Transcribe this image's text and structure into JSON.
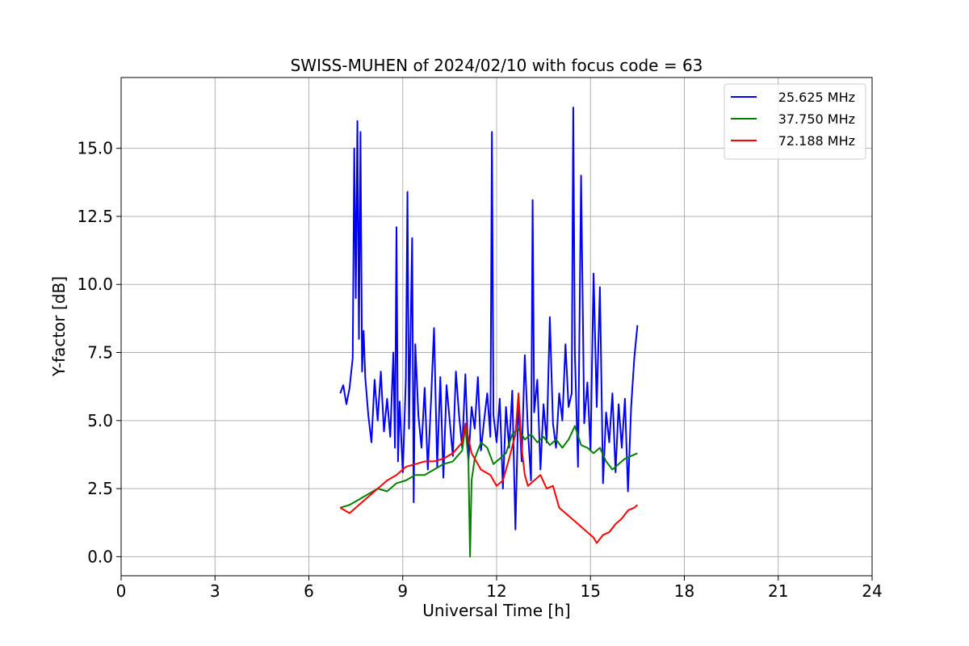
{
  "chart_data": {
    "type": "line",
    "title": "SWISS-MUHEN of 2024/02/10 with focus code = 63",
    "xlabel": "Universal Time [h]",
    "ylabel": "Y-factor [dB]",
    "xlim": [
      0,
      24
    ],
    "ylim": [
      -0.7,
      17.6
    ],
    "x_ticks": [
      0,
      3,
      6,
      9,
      12,
      15,
      18,
      21,
      24
    ],
    "x_tick_labels": [
      "0",
      "3",
      "6",
      "9",
      "12",
      "15",
      "18",
      "21",
      "24"
    ],
    "y_ticks": [
      0,
      2.5,
      5,
      7.5,
      10,
      12.5,
      15
    ],
    "y_tick_labels": [
      "0.0",
      "2.5",
      "5.0",
      "7.5",
      "10.0",
      "12.5",
      "15.0"
    ],
    "grid": true,
    "legend_position": "top-right",
    "series": [
      {
        "name": "25.625 MHz",
        "color": "#0000ff",
        "x": [
          7.0,
          7.1,
          7.2,
          7.3,
          7.4,
          7.45,
          7.5,
          7.55,
          7.6,
          7.65,
          7.7,
          7.75,
          7.8,
          7.9,
          8.0,
          8.1,
          8.2,
          8.3,
          8.4,
          8.5,
          8.6,
          8.7,
          8.75,
          8.8,
          8.85,
          8.9,
          9.0,
          9.1,
          9.15,
          9.2,
          9.3,
          9.35,
          9.4,
          9.5,
          9.6,
          9.7,
          9.8,
          9.9,
          10.0,
          10.1,
          10.2,
          10.3,
          10.4,
          10.5,
          10.6,
          10.7,
          10.8,
          10.9,
          11.0,
          11.1,
          11.2,
          11.3,
          11.4,
          11.5,
          11.6,
          11.7,
          11.8,
          11.85,
          11.9,
          12.0,
          12.1,
          12.2,
          12.3,
          12.4,
          12.5,
          12.6,
          12.7,
          12.8,
          12.9,
          13.0,
          13.1,
          13.15,
          13.2,
          13.3,
          13.4,
          13.5,
          13.6,
          13.7,
          13.8,
          13.9,
          14.0,
          14.1,
          14.2,
          14.3,
          14.4,
          14.45,
          14.5,
          14.6,
          14.7,
          14.8,
          14.9,
          15.0,
          15.1,
          15.2,
          15.3,
          15.4,
          15.5,
          15.6,
          15.7,
          15.8,
          15.9,
          16.0,
          16.1,
          16.2,
          16.3,
          16.4,
          16.5
        ],
        "y": [
          6.0,
          6.3,
          5.6,
          6.2,
          7.3,
          15.0,
          9.5,
          16.0,
          8.0,
          15.6,
          6.8,
          8.3,
          6.6,
          5.2,
          4.2,
          6.5,
          5.0,
          6.8,
          4.6,
          5.8,
          4.4,
          7.5,
          4.0,
          12.1,
          3.5,
          5.7,
          3.1,
          6.5,
          13.4,
          4.7,
          11.7,
          2.0,
          7.8,
          5.2,
          4.0,
          6.2,
          3.2,
          5.6,
          8.4,
          3.3,
          6.6,
          2.9,
          6.3,
          5.0,
          3.7,
          6.8,
          5.2,
          4.0,
          6.7,
          3.5,
          5.5,
          4.7,
          6.6,
          3.9,
          5.0,
          6.0,
          4.4,
          15.6,
          5.2,
          4.2,
          5.8,
          2.5,
          5.5,
          4.0,
          6.1,
          1.0,
          5.8,
          3.5,
          7.4,
          4.6,
          2.8,
          13.1,
          5.3,
          6.5,
          3.2,
          5.6,
          4.2,
          8.8,
          4.9,
          4.0,
          6.0,
          5.0,
          7.8,
          5.5,
          6.0,
          16.5,
          7.5,
          3.3,
          14.0,
          4.9,
          6.4,
          3.9,
          10.4,
          5.5,
          9.9,
          2.7,
          5.3,
          4.2,
          6.0,
          3.1,
          5.6,
          4.0,
          5.8,
          2.4,
          5.5,
          7.3,
          8.5
        ]
      },
      {
        "name": "37.750 MHz",
        "color": "#008000",
        "x": [
          7.0,
          7.3,
          7.6,
          7.9,
          8.2,
          8.5,
          8.8,
          9.1,
          9.4,
          9.7,
          10.0,
          10.3,
          10.6,
          10.9,
          11.0,
          11.1,
          11.15,
          11.2,
          11.3,
          11.5,
          11.7,
          11.9,
          12.1,
          12.3,
          12.5,
          12.7,
          12.9,
          13.1,
          13.3,
          13.5,
          13.7,
          13.9,
          14.1,
          14.3,
          14.5,
          14.7,
          14.9,
          15.1,
          15.3,
          15.5,
          15.7,
          15.9,
          16.1,
          16.3,
          16.5
        ],
        "y": [
          1.8,
          1.9,
          2.1,
          2.3,
          2.5,
          2.4,
          2.7,
          2.8,
          3.0,
          3.0,
          3.2,
          3.4,
          3.5,
          3.9,
          4.8,
          3.5,
          0.0,
          2.8,
          3.6,
          4.2,
          4.0,
          3.4,
          3.6,
          3.8,
          4.5,
          4.7,
          4.3,
          4.5,
          4.2,
          4.4,
          4.1,
          4.3,
          4.0,
          4.3,
          4.8,
          4.1,
          4.0,
          3.8,
          4.0,
          3.5,
          3.2,
          3.4,
          3.6,
          3.7,
          3.8
        ]
      },
      {
        "name": "72.188 MHz",
        "color": "#ff0000",
        "x": [
          7.0,
          7.3,
          7.6,
          7.9,
          8.2,
          8.5,
          8.8,
          9.1,
          9.4,
          9.7,
          10.0,
          10.3,
          10.6,
          10.9,
          11.0,
          11.2,
          11.5,
          11.8,
          12.0,
          12.2,
          12.4,
          12.6,
          12.7,
          12.8,
          12.9,
          13.0,
          13.2,
          13.4,
          13.6,
          13.8,
          14.0,
          14.3,
          14.6,
          14.9,
          15.1,
          15.2,
          15.4,
          15.6,
          15.8,
          16.0,
          16.2,
          16.4,
          16.5
        ],
        "y": [
          1.8,
          1.6,
          1.9,
          2.2,
          2.5,
          2.8,
          3.0,
          3.3,
          3.4,
          3.5,
          3.5,
          3.6,
          3.8,
          4.2,
          4.9,
          3.8,
          3.2,
          3.0,
          2.6,
          2.8,
          3.6,
          4.5,
          6.0,
          4.0,
          3.0,
          2.6,
          2.8,
          3.0,
          2.5,
          2.6,
          1.8,
          1.5,
          1.2,
          0.9,
          0.7,
          0.5,
          0.8,
          0.9,
          1.2,
          1.4,
          1.7,
          1.8,
          1.9
        ]
      }
    ]
  }
}
